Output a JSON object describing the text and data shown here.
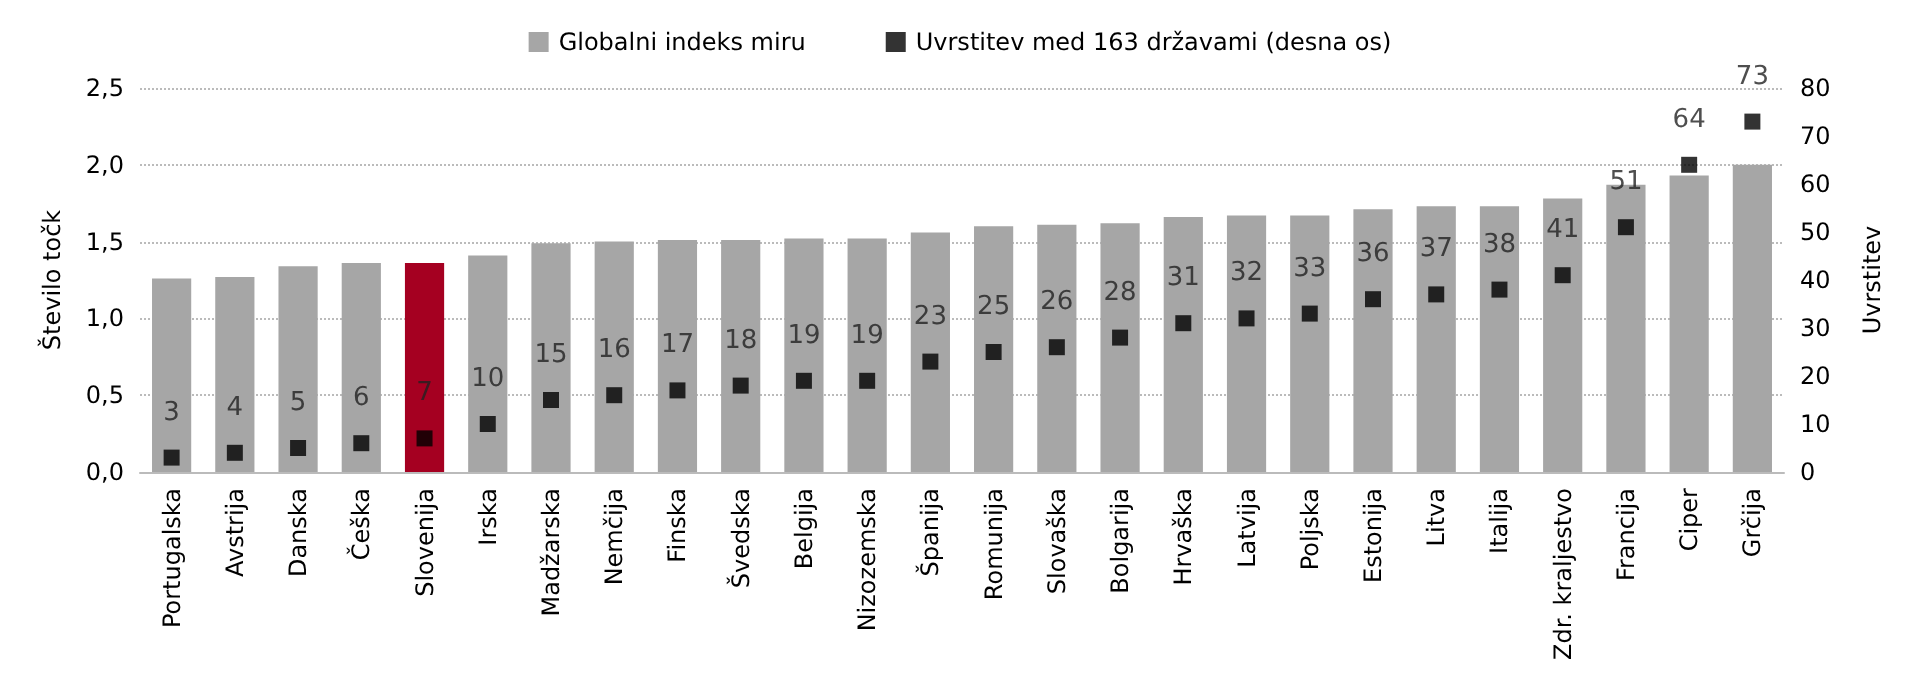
{
  "chart_data": {
    "type": "bar",
    "categories": [
      "Portugalska",
      "Avstrija",
      "Danska",
      "Češka",
      "Slovenija",
      "Irska",
      "Madžarska",
      "Nemčija",
      "Finska",
      "Švedska",
      "Belgija",
      "Nizozemska",
      "Španija",
      "Romunija",
      "Slovaška",
      "Bolgarija",
      "Hrvaška",
      "Latvija",
      "Poljska",
      "Estonija",
      "Litva",
      "Italija",
      "Zdr. kraljestvo",
      "Francija",
      "Ciper",
      "Grčija"
    ],
    "series": [
      {
        "name": "Globalni indeks miru",
        "color": "#a6a6a6",
        "colors": [
          "#a6a6a6",
          "#a6a6a6",
          "#a6a6a6",
          "#a6a6a6",
          "#a50021",
          "#a6a6a6",
          "#a6a6a6",
          "#a6a6a6",
          "#a6a6a6",
          "#a6a6a6",
          "#a6a6a6",
          "#a6a6a6",
          "#a6a6a6",
          "#a6a6a6",
          "#a6a6a6",
          "#a6a6a6",
          "#a6a6a6",
          "#a6a6a6",
          "#a6a6a6",
          "#a6a6a6",
          "#a6a6a6",
          "#a6a6a6",
          "#a6a6a6",
          "#a6a6a6",
          "#a6a6a6",
          "#a6a6a6"
        ],
        "values": [
          1.26,
          1.27,
          1.34,
          1.36,
          1.36,
          1.41,
          1.49,
          1.5,
          1.51,
          1.51,
          1.52,
          1.52,
          1.56,
          1.6,
          1.61,
          1.62,
          1.66,
          1.67,
          1.67,
          1.71,
          1.73,
          1.73,
          1.78,
          1.87,
          1.93,
          2.0
        ]
      },
      {
        "name": "Uvrstitev med 163 državami (desna os)",
        "type": "scatter",
        "marker": "square",
        "axis": "y2",
        "color": "#000000",
        "data_labels": true,
        "values": [
          3,
          4,
          5,
          6,
          7,
          10,
          15,
          16,
          17,
          18,
          19,
          19,
          23,
          25,
          26,
          28,
          31,
          32,
          33,
          36,
          37,
          38,
          41,
          51,
          64,
          73
        ]
      }
    ],
    "ylabel": "Število točk",
    "y2label": "Uvrstitev",
    "ylim": [
      0,
      2.5
    ],
    "yticks": [
      {
        "value": 0,
        "label": "0,0"
      },
      {
        "value": 0.5,
        "label": "0,5"
      },
      {
        "value": 1,
        "label": "1,0"
      },
      {
        "value": 1.5,
        "label": "1,5"
      },
      {
        "value": 2,
        "label": "2,0"
      },
      {
        "value": 2.5,
        "label": "2,5"
      }
    ],
    "y2lim": [
      0,
      80
    ],
    "y2ticks": [
      0,
      10,
      20,
      30,
      40,
      50,
      60,
      70,
      80
    ],
    "grid": "y",
    "legend": "top"
  }
}
